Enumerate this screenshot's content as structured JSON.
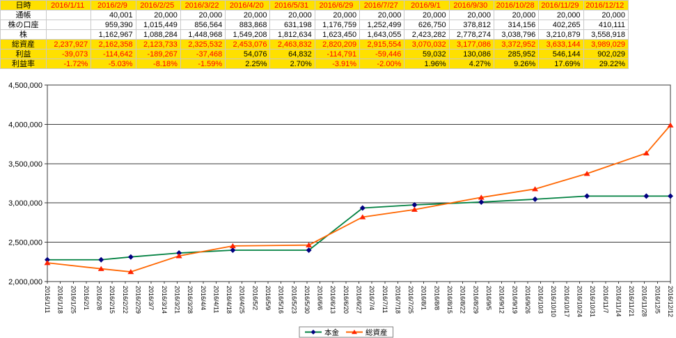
{
  "colors": {
    "highlight_bg": "#ffe000",
    "negative_text": "#ff0000",
    "cell_border": "#c9c9c9",
    "axis_line": "#3a3a3a",
    "principal_line": "#008040",
    "principal_marker": "#000080",
    "assets_line": "#ff6600",
    "assets_marker": "#ff2200"
  },
  "table": {
    "rows": [
      {
        "label": "日時",
        "bg": "yellow",
        "color": "red",
        "align": "center",
        "values": [
          "2016/1/11",
          "2016/2/9",
          "2016/2/25",
          "2016/3/22",
          "2016/4/20",
          "2016/5/31",
          "2016/6/29",
          "2016/7/27",
          "2016/9/1",
          "2016/9/30",
          "2016/10/28",
          "2016/11/29",
          "2016/12/12"
        ]
      },
      {
        "label": "通帳",
        "bg": "white",
        "color": "auto",
        "align": "right",
        "values": [
          "",
          "40,001",
          "20,000",
          "20,000",
          "20,000",
          "20,000",
          "20,000",
          "20,000",
          "20,000",
          "20,000",
          "20,000",
          "20,000",
          "20,000"
        ]
      },
      {
        "label": "株の口座",
        "bg": "white",
        "color": "auto",
        "align": "right",
        "values": [
          "",
          "959,390",
          "1,015,449",
          "856,564",
          "883,868",
          "631,198",
          "1,176,759",
          "1,252,499",
          "626,750",
          "378,812",
          "314,156",
          "402,265",
          "410,111"
        ]
      },
      {
        "label": "株",
        "bg": "white",
        "color": "auto",
        "align": "right",
        "values": [
          "",
          "1,162,967",
          "1,088,284",
          "1,448,968",
          "1,549,208",
          "1,812,634",
          "1,623,450",
          "1,643,055",
          "2,423,282",
          "2,778,274",
          "3,038,796",
          "3,210,879",
          "3,558,918"
        ]
      },
      {
        "label": "総資産",
        "bg": "yellow",
        "color": "red",
        "align": "right",
        "values": [
          "2,237,927",
          "2,162,358",
          "2,123,733",
          "2,325,532",
          "2,453,076",
          "2,463,832",
          "2,820,209",
          "2,915,554",
          "3,070,032",
          "3,177,086",
          "3,372,952",
          "3,633,144",
          "3,989,029"
        ]
      },
      {
        "label": "利益",
        "bg": "yellow",
        "color": "auto",
        "align": "right",
        "values": [
          "-39,073",
          "-114,642",
          "-189,267",
          "-37,468",
          "54,076",
          "64,832",
          "-114,791",
          "-59,446",
          "59,032",
          "130,086",
          "285,952",
          "546,144",
          "902,029"
        ]
      },
      {
        "label": "利益率",
        "bg": "yellow",
        "color": "auto",
        "align": "right",
        "values": [
          "-1.72%",
          "-5.03%",
          "-8.18%",
          "-1.59%",
          "2.25%",
          "2.70%",
          "-3.91%",
          "-2.00%",
          "1.96%",
          "4.27%",
          "9.26%",
          "17.69%",
          "29.22%"
        ]
      }
    ]
  },
  "chart_data": {
    "type": "line",
    "title": "",
    "xlabel": "",
    "ylabel": "",
    "ylim": [
      2000000,
      4500000
    ],
    "grid": "horizontal",
    "legend_position": "bottom",
    "yticks": [
      {
        "value": 2000000,
        "label": "2,000,000"
      },
      {
        "value": 2500000,
        "label": "2,500,000"
      },
      {
        "value": 3000000,
        "label": "3,000,000"
      },
      {
        "value": 3500000,
        "label": "3,500,000"
      },
      {
        "value": 4000000,
        "label": "4,000,000"
      },
      {
        "value": 4500000,
        "label": "4,500,000"
      }
    ],
    "x_axis": {
      "total_days": 336,
      "tick_interval_days": 7,
      "tick_labels": [
        "2016/1/11",
        "2016/1/18",
        "2016/1/25",
        "2016/2/1",
        "2016/2/8",
        "2016/2/15",
        "2016/2/22",
        "2016/2/29",
        "2016/3/7",
        "2016/3/14",
        "2016/3/21",
        "2016/3/28",
        "2016/4/4",
        "2016/4/11",
        "2016/4/18",
        "2016/4/25",
        "2016/5/2",
        "2016/5/9",
        "2016/5/16",
        "2016/5/23",
        "2016/5/30",
        "2016/6/6",
        "2016/6/13",
        "2016/6/20",
        "2016/6/27",
        "2016/7/4",
        "2016/7/11",
        "2016/7/18",
        "2016/7/25",
        "2016/8/1",
        "2016/8/8",
        "2016/8/15",
        "2016/8/22",
        "2016/8/29",
        "2016/9/5",
        "2016/9/12",
        "2016/9/19",
        "2016/9/26",
        "2016/10/3",
        "2016/10/10",
        "2016/10/17",
        "2016/10/24",
        "2016/10/31",
        "2016/11/7",
        "2016/11/14",
        "2016/11/21",
        "2016/11/28",
        "2016/12/5",
        "2016/12/12"
      ]
    },
    "point_dates": [
      "2016/1/11",
      "2016/2/9",
      "2016/2/25",
      "2016/3/22",
      "2016/4/20",
      "2016/5/31",
      "2016/6/29",
      "2016/7/27",
      "2016/9/1",
      "2016/9/30",
      "2016/10/28",
      "2016/11/29",
      "2016/12/12"
    ],
    "point_day_offsets": [
      0,
      29,
      45,
      71,
      100,
      141,
      170,
      198,
      234,
      263,
      291,
      323,
      336
    ],
    "series": [
      {
        "id": "principal",
        "name": "本金",
        "marker": "diamond",
        "line_color": "#008040",
        "marker_color": "#000080",
        "values": [
          2277000,
          2277000,
          2313000,
          2363000,
          2399000,
          2399000,
          2935000,
          2975000,
          3011000,
          3047000,
          3087000,
          3087000,
          3087000
        ]
      },
      {
        "id": "total-assets",
        "name": "総資産",
        "marker": "triangle",
        "line_color": "#ff6600",
        "marker_color": "#ff2200",
        "values": [
          2237927,
          2162358,
          2123733,
          2325532,
          2453076,
          2463832,
          2820209,
          2915554,
          3070032,
          3177086,
          3372952,
          3633144,
          3989029
        ]
      }
    ]
  }
}
